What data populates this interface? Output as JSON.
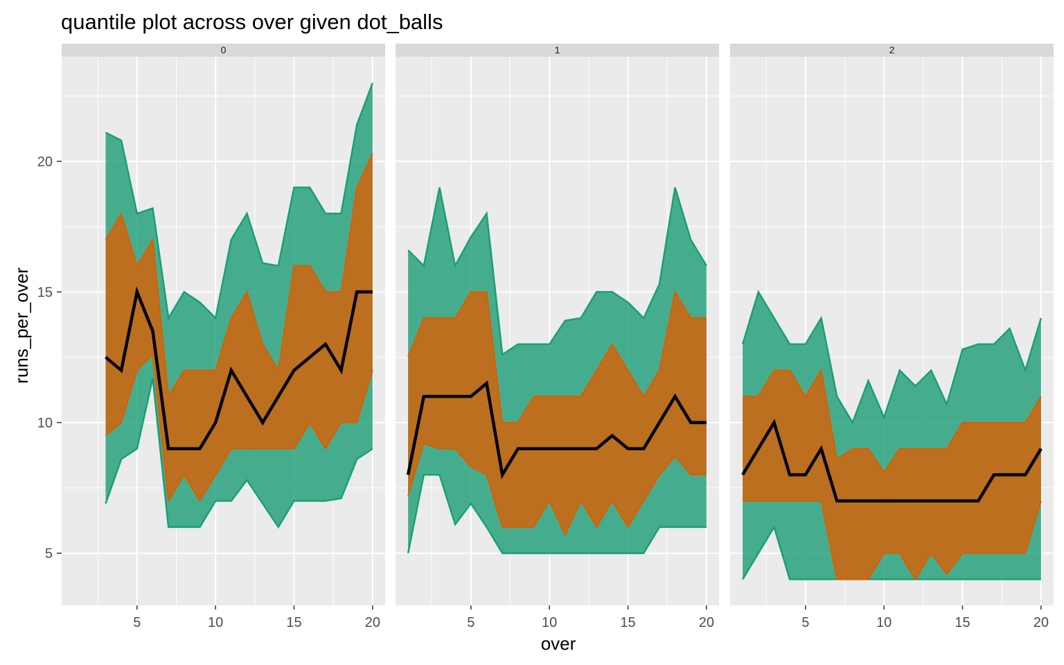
{
  "chart_data": {
    "type": "area",
    "title": "quantile plot across over given dot_balls",
    "xlabel": "over",
    "ylabel": "runs_per_over",
    "xlim": [
      0.2,
      20.8
    ],
    "ylim": [
      3.0,
      24.0
    ],
    "x_ticks": [
      5,
      10,
      15,
      20
    ],
    "y_ticks": [
      5,
      10,
      15,
      20
    ],
    "grid": true,
    "colors": {
      "outer_band": "#1b9e77",
      "inner_band": "#d95f02",
      "median": "#000000",
      "panel_bg": "#ebebeb",
      "strip_bg": "#d9d9d9",
      "grid": "#ffffff"
    },
    "facet_variable": "dot_balls",
    "facets": [
      {
        "label": "0",
        "x": [
          3,
          4,
          5,
          6,
          7,
          8,
          9,
          10,
          11,
          12,
          13,
          14,
          15,
          16,
          17,
          18,
          19,
          20
        ],
        "outer_low": [
          6.9,
          8.6,
          9,
          11.7,
          6,
          6,
          6,
          7,
          7,
          7.8,
          6.9,
          6,
          7,
          7,
          7,
          7.1,
          8.6,
          9
        ],
        "inner_low": [
          9.5,
          10,
          12,
          12.6,
          7,
          8,
          7,
          8,
          9,
          9,
          9,
          9,
          9,
          10,
          9,
          10,
          10,
          12
        ],
        "median": [
          12.5,
          12,
          15,
          13.5,
          9,
          9,
          9,
          10,
          12,
          11,
          10,
          11,
          12,
          12.5,
          13,
          12,
          15,
          15
        ],
        "inner_high": [
          17,
          18,
          16,
          17,
          11,
          12,
          12,
          12,
          14,
          15,
          13,
          12,
          16,
          16,
          15,
          15,
          19,
          20.3
        ],
        "outer_high": [
          21.1,
          20.8,
          18,
          18.2,
          14,
          15,
          14.6,
          14,
          17,
          18,
          16.1,
          16,
          19,
          19,
          18,
          18,
          21.4,
          23
        ]
      },
      {
        "label": "1",
        "x": [
          1,
          2,
          3,
          4,
          5,
          6,
          7,
          8,
          9,
          10,
          11,
          12,
          13,
          14,
          15,
          16,
          17,
          18,
          19,
          20
        ],
        "outer_low": [
          5,
          8,
          8,
          6.1,
          6.9,
          6,
          5,
          5,
          5,
          5,
          5,
          5,
          5,
          5,
          5,
          5,
          6,
          6,
          6,
          6
        ],
        "inner_low": [
          7.2,
          9.2,
          9,
          9,
          8.3,
          8,
          6,
          6,
          6,
          7,
          5.7,
          7,
          6,
          7,
          6,
          7,
          8,
          8.7,
          8,
          8
        ],
        "median": [
          8,
          11,
          11,
          11,
          11,
          11.5,
          8,
          9,
          9,
          9,
          9,
          9,
          9,
          9.5,
          9,
          9,
          10,
          11,
          10,
          10
        ],
        "inner_high": [
          12.5,
          14,
          14,
          14,
          15,
          15,
          10,
          10,
          11,
          11,
          11,
          11,
          12,
          13,
          12,
          11,
          12,
          15,
          14,
          14
        ],
        "outer_high": [
          16.6,
          16,
          19,
          16,
          17.1,
          18,
          12.6,
          13,
          13,
          13,
          13.9,
          14,
          15,
          15,
          14.6,
          14,
          15.3,
          19,
          17,
          16
        ]
      },
      {
        "label": "2",
        "x": [
          1,
          2,
          3,
          4,
          5,
          6,
          7,
          8,
          9,
          10,
          11,
          12,
          13,
          14,
          15,
          16,
          17,
          18,
          19,
          20
        ],
        "outer_low": [
          4,
          5,
          6,
          4,
          4,
          4,
          4,
          4,
          4,
          4,
          4,
          4,
          4,
          4,
          4,
          4,
          4,
          4,
          4,
          4
        ],
        "inner_low": [
          7,
          7,
          7,
          7,
          7,
          7,
          4,
          4,
          4,
          5,
          5,
          4,
          5,
          4.2,
          5,
          5,
          5,
          5,
          5,
          7
        ],
        "median": [
          8,
          9,
          10,
          8,
          8,
          9,
          7,
          7,
          7,
          7,
          7,
          7,
          7,
          7,
          7,
          7,
          8,
          8,
          8,
          9
        ],
        "inner_high": [
          11,
          11,
          12,
          12,
          11,
          12,
          8.6,
          9,
          9,
          8.1,
          9,
          9,
          9,
          9,
          10,
          10,
          10,
          10,
          10,
          11
        ],
        "outer_high": [
          13,
          15,
          14,
          13,
          13,
          14,
          11,
          10,
          11.6,
          10.2,
          12,
          11.4,
          12,
          10.7,
          12.8,
          13,
          13,
          13.6,
          12,
          14
        ]
      }
    ]
  }
}
